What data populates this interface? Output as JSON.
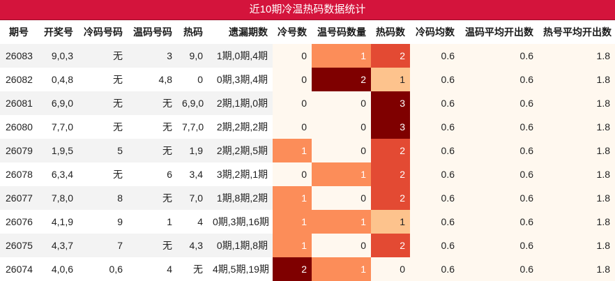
{
  "title": "近10期冷温热码数据统计",
  "headers": [
    "期号",
    "开奖号",
    "冷码号码",
    "温码号码",
    "热码",
    "遗漏期数",
    "冷号数",
    "温号码数量",
    "热码数",
    "冷码均数",
    "温码平均开出数",
    "热号平均开出数"
  ],
  "rows": [
    [
      "26083",
      "9,0,3",
      "无",
      "3",
      "9,0",
      "1期,0期,4期",
      "0",
      "1",
      "2",
      "0.6",
      "0.6",
      "1.8"
    ],
    [
      "26082",
      "0,4,8",
      "无",
      "4,8",
      "0",
      "0期,3期,4期",
      "0",
      "2",
      "1",
      "0.6",
      "0.6",
      "1.8"
    ],
    [
      "26081",
      "6,9,0",
      "无",
      "无",
      "6,9,0",
      "2期,1期,0期",
      "0",
      "0",
      "3",
      "0.6",
      "0.6",
      "1.8"
    ],
    [
      "26080",
      "7,7,0",
      "无",
      "无",
      "7,7,0",
      "2期,2期,2期",
      "0",
      "0",
      "3",
      "0.6",
      "0.6",
      "1.8"
    ],
    [
      "26079",
      "1,9,5",
      "5",
      "无",
      "1,9",
      "2期,2期,5期",
      "1",
      "0",
      "2",
      "0.6",
      "0.6",
      "1.8"
    ],
    [
      "26078",
      "6,3,4",
      "无",
      "6",
      "3,4",
      "3期,2期,1期",
      "0",
      "1",
      "2",
      "0.6",
      "0.6",
      "1.8"
    ],
    [
      "26077",
      "7,8,0",
      "8",
      "无",
      "7,0",
      "1期,8期,2期",
      "1",
      "0",
      "2",
      "0.6",
      "0.6",
      "1.8"
    ],
    [
      "26076",
      "4,1,9",
      "9",
      "1",
      "4",
      "0期,3期,16期",
      "1",
      "1",
      "1",
      "0.6",
      "0.6",
      "1.8"
    ],
    [
      "26075",
      "4,3,7",
      "7",
      "无",
      "4,3",
      "0期,1期,8期",
      "1",
      "0",
      "2",
      "0.6",
      "0.6",
      "1.8"
    ],
    [
      "26074",
      "4,0,6",
      "0,6",
      "4",
      "无",
      "4期,5期,19期",
      "2",
      "1",
      "0",
      "0.6",
      "0.6",
      "1.8"
    ]
  ],
  "heat_colors": {
    "count_0": "#fff8ef",
    "count_1": "#fc8d59",
    "count_2": "#7f0000",
    "hot_1": "#fdc38d",
    "hot_2": "#e34a33",
    "hot_3": "#7f0000"
  }
}
